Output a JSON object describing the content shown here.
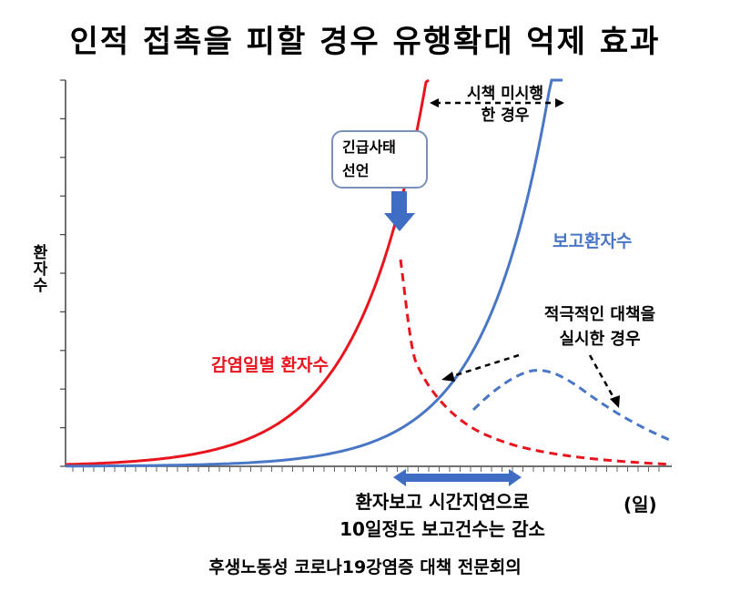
{
  "title": "인적 접촉을 피할 경우 유행확대 억제 효과",
  "ylabel": "환자수",
  "xunit": "(일)",
  "source": "후생노동성 코로나19강염증 대책 전문회의",
  "callout": {
    "line1": "긴급사태",
    "line2": "선언"
  },
  "annotations": {
    "no_action_line1": "시책 미시행",
    "no_action_line2": "한 경우",
    "active_line1": "적극적인 대책을",
    "active_line2": "실시한 경우",
    "lag_line1": "환자보고 시간지연으로",
    "lag_line2": "10일정도 보고건수는 감소"
  },
  "colors": {
    "infection": "#e8141e",
    "reported": "#4a76c6",
    "arrow": "#3e6dc3"
  },
  "chart_data": {
    "type": "line",
    "title": "인적 접촉을 피할 경우 유행확대 억제 효과",
    "xlabel": "(일)",
    "ylabel": "환자수",
    "grid": false,
    "series": [
      {
        "name": "감염일별 환자수",
        "style": "solid",
        "color": "#e8141e"
      },
      {
        "name": "감염일별 환자수",
        "style": "dashed",
        "color": "#e8141e",
        "note": "after 긴급사태 선언"
      },
      {
        "name": "보고환자수",
        "style": "solid",
        "color": "#4a76c6"
      },
      {
        "name": "보고환자수",
        "style": "dashed",
        "color": "#4a76c6",
        "note": "적극적인 대책을 실시한 경우"
      }
    ]
  }
}
